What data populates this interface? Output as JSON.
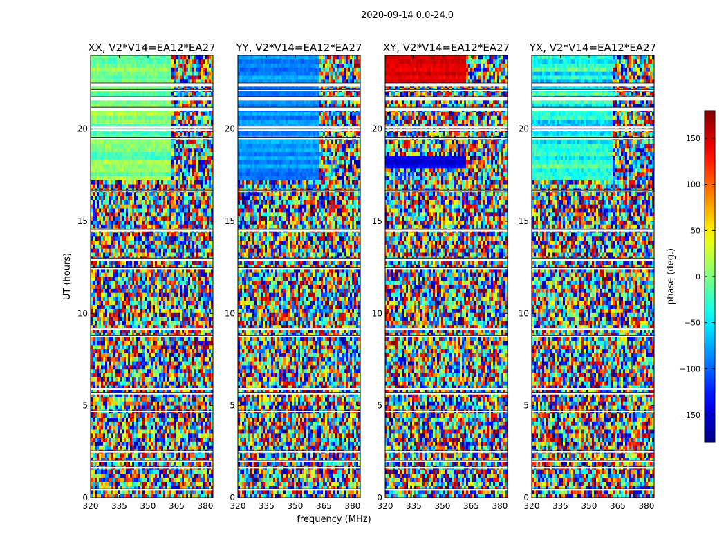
{
  "figure": {
    "title": "2020-09-14 0.0-24.0"
  },
  "chart_data": {
    "type": "heatmap",
    "suptitle": "2020-09-14 0.0-24.0",
    "xlabel": "frequency (MHz)",
    "ylabel": "UT (hours)",
    "xlim": [
      320,
      384
    ],
    "ylim": [
      0,
      24
    ],
    "x_ticks": [
      320,
      335,
      350,
      365,
      380
    ],
    "y_ticks": [
      0,
      5,
      10,
      15,
      20
    ],
    "colormap": "jet",
    "panels": [
      {
        "title": "XX, V2*V14=EA12*EA27",
        "pol": "XX"
      },
      {
        "title": "YY, V2*V14=EA12*EA27",
        "pol": "YY"
      },
      {
        "title": "XY, V2*V14=EA12*EA27",
        "pol": "XY"
      },
      {
        "title": "YX, V2*V14=EA12*EA27",
        "pol": "YX"
      }
    ],
    "colorbar": {
      "label": "phase (deg.)",
      "range": [
        -180,
        180
      ],
      "ticks": [
        150,
        100,
        50,
        0,
        -50,
        -100,
        -150
      ],
      "tick_labels": [
        "150",
        "100",
        "50",
        "0",
        "−50",
        "−100",
        "−150"
      ]
    },
    "flagged_ut_hours": [
      [
        21.0,
        21.18
      ],
      [
        21.55,
        21.75
      ],
      [
        22.05,
        22.15
      ],
      [
        22.3,
        22.5
      ],
      [
        20.05,
        20.15
      ],
      [
        19.9,
        20.0
      ],
      [
        19.45,
        19.55
      ],
      [
        16.6,
        16.68
      ],
      [
        14.45,
        14.55
      ],
      [
        12.85,
        13.0
      ],
      [
        12.4,
        12.5
      ],
      [
        9.1,
        9.2
      ],
      [
        8.7,
        8.8
      ],
      [
        5.85,
        5.95
      ],
      [
        5.6,
        5.72
      ],
      [
        4.65,
        4.72
      ],
      [
        2.45,
        2.55
      ],
      [
        1.95,
        2.02
      ],
      [
        1.6,
        1.68
      ],
      [
        0.4,
        0.48
      ]
    ],
    "coherent_regions": [
      {
        "panel": "XX",
        "ut": [
          17.2,
          24.0
        ],
        "freq": [
          320,
          362
        ],
        "phase_deg": [
          -40,
          40
        ]
      },
      {
        "panel": "YY",
        "ut": [
          17.2,
          24.0
        ],
        "freq": [
          320,
          362
        ],
        "phase_deg": [
          -110,
          -60
        ]
      },
      {
        "panel": "XY",
        "ut": [
          22.5,
          24.0
        ],
        "freq": [
          320,
          362
        ],
        "phase_deg": [
          120,
          170
        ]
      },
      {
        "panel": "XY",
        "ut": [
          17.8,
          18.6
        ],
        "freq": [
          320,
          362
        ],
        "phase_deg": [
          -160,
          -120
        ]
      },
      {
        "panel": "YX",
        "ut": [
          17.2,
          24.0
        ],
        "freq": [
          320,
          362
        ],
        "phase_deg": [
          -90,
          20
        ]
      }
    ]
  }
}
